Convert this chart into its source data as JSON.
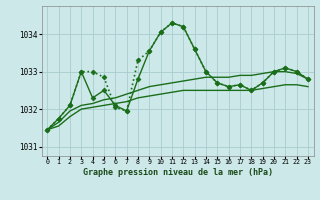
{
  "background_color": "#cce8e8",
  "grid_color": "#aacccc",
  "line_color": "#1a6e1a",
  "title": "Graphe pression niveau de la mer (hPa)",
  "xlim": [
    -0.5,
    23.5
  ],
  "ylim": [
    1030.75,
    1034.75
  ],
  "yticks": [
    1031,
    1032,
    1033,
    1034
  ],
  "series": [
    {
      "x": [
        0,
        1,
        2,
        3,
        4,
        5,
        6,
        7,
        8,
        9,
        10,
        11,
        12,
        13,
        14,
        15,
        16,
        17,
        18,
        19,
        20,
        21,
        22,
        23
      ],
      "y": [
        1031.45,
        1031.75,
        1032.1,
        1033.0,
        1033.0,
        1032.85,
        1032.05,
        1031.95,
        1033.3,
        1033.55,
        1034.05,
        1034.3,
        1034.2,
        1033.6,
        1033.0,
        1032.7,
        1032.6,
        1032.65,
        1032.5,
        1032.7,
        1033.0,
        1033.1,
        1033.0,
        1032.8
      ],
      "linestyle": ":",
      "linewidth": 1.2,
      "marker": "D",
      "markersize": 2.5
    },
    {
      "x": [
        0,
        1,
        2,
        3,
        4,
        5,
        6,
        7,
        8,
        9,
        10,
        11,
        12,
        13,
        14,
        15,
        16,
        17,
        18,
        19,
        20,
        21,
        22,
        23
      ],
      "y": [
        1031.45,
        1031.65,
        1031.95,
        1032.1,
        1032.15,
        1032.25,
        1032.3,
        1032.4,
        1032.5,
        1032.6,
        1032.65,
        1032.7,
        1032.75,
        1032.8,
        1032.85,
        1032.85,
        1032.85,
        1032.9,
        1032.9,
        1032.95,
        1033.0,
        1033.0,
        1032.95,
        1032.8
      ],
      "linestyle": "-",
      "linewidth": 1.0,
      "marker": null,
      "markersize": 0
    },
    {
      "x": [
        0,
        1,
        2,
        3,
        4,
        5,
        6,
        7,
        8,
        9,
        10,
        11,
        12,
        13,
        14,
        15,
        16,
        17,
        18,
        19,
        20,
        21,
        22,
        23
      ],
      "y": [
        1031.45,
        1031.55,
        1031.8,
        1032.0,
        1032.05,
        1032.1,
        1032.15,
        1032.2,
        1032.3,
        1032.35,
        1032.4,
        1032.45,
        1032.5,
        1032.5,
        1032.5,
        1032.5,
        1032.5,
        1032.5,
        1032.5,
        1032.55,
        1032.6,
        1032.65,
        1032.65,
        1032.6
      ],
      "linestyle": "-",
      "linewidth": 1.0,
      "marker": null,
      "markersize": 0
    },
    {
      "x": [
        0,
        1,
        2,
        3,
        4,
        5,
        6,
        7,
        8,
        9,
        10,
        11,
        12,
        13,
        14,
        15,
        16,
        17,
        18,
        19,
        20,
        21,
        22,
        23
      ],
      "y": [
        1031.45,
        1031.75,
        1032.1,
        1033.0,
        1032.3,
        1032.5,
        1032.1,
        1031.95,
        1032.8,
        1033.55,
        1034.05,
        1034.3,
        1034.2,
        1033.6,
        1033.0,
        1032.7,
        1032.6,
        1032.65,
        1032.5,
        1032.7,
        1033.0,
        1033.1,
        1033.0,
        1032.8
      ],
      "linestyle": "-",
      "linewidth": 1.0,
      "marker": "D",
      "markersize": 2.5
    }
  ]
}
